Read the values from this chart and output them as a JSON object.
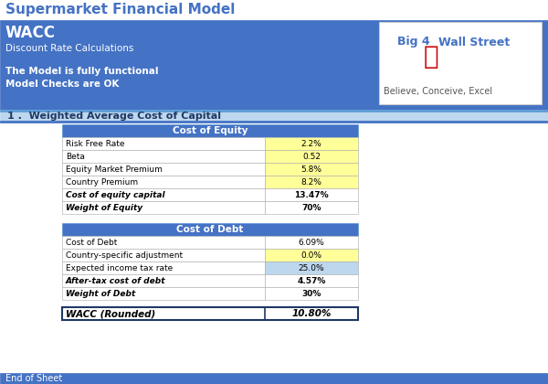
{
  "title": "Supermarket Financial Model",
  "subtitle": "WACC",
  "sub2": "Discount Rate Calculations",
  "sub3": "The Model is fully functional",
  "sub4": "Model Checks are OK",
  "section_title": "1 .  Weighted Average Cost of Capital",
  "header_bg": "#4472C4",
  "section_bg": "#BDD7EE",
  "end_bg": "#4472C4",
  "cost_of_equity_header": "Cost of Equity",
  "cost_of_debt_header": "Cost of Debt",
  "equity_rows": [
    {
      "label": "Risk Free Rate",
      "value": "2.2%",
      "bg": "#FFFF99",
      "bold": false,
      "italic": false
    },
    {
      "label": "Beta",
      "value": "0.52",
      "bg": "#FFFF99",
      "bold": false,
      "italic": false
    },
    {
      "label": "Equity Market Premium",
      "value": "5.8%",
      "bg": "#FFFF99",
      "bold": false,
      "italic": false
    },
    {
      "label": "Country Premium",
      "value": "8.2%",
      "bg": "#FFFF99",
      "bold": false,
      "italic": false
    },
    {
      "label": "Cost of equity capital",
      "value": "13.47%",
      "bg": "#FFFFFF",
      "bold": true,
      "italic": true
    },
    {
      "label": "Weight of Equity",
      "value": "70%",
      "bg": "#FFFFFF",
      "bold": true,
      "italic": true
    }
  ],
  "debt_rows": [
    {
      "label": "Cost of Debt",
      "value": "6.09%",
      "bg": "#FFFFFF",
      "bold": false,
      "italic": false
    },
    {
      "label": "Country-specific adjustment",
      "value": "0.0%",
      "bg": "#FFFF99",
      "bold": false,
      "italic": false
    },
    {
      "label": "Expected income tax rate",
      "value": "25.0%",
      "bg": "#BDD7EE",
      "bold": false,
      "italic": false
    },
    {
      "label": "After-tax cost of debt",
      "value": "4.57%",
      "bg": "#FFFFFF",
      "bold": true,
      "italic": true
    },
    {
      "label": "Weight of Debt",
      "value": "30%",
      "bg": "#FFFFFF",
      "bold": true,
      "italic": true
    }
  ],
  "wacc_label": "WACC (Rounded)",
  "wacc_value": "10.80%",
  "end_label": "End of Sheet",
  "logo_text1": "Big 4",
  "logo_text2": "Wall Street",
  "logo_text3": "Believe, Conceive, Excel",
  "title_bg": "#FFFFFF",
  "title_color": "#4472C4",
  "dark_blue": "#1F3864"
}
